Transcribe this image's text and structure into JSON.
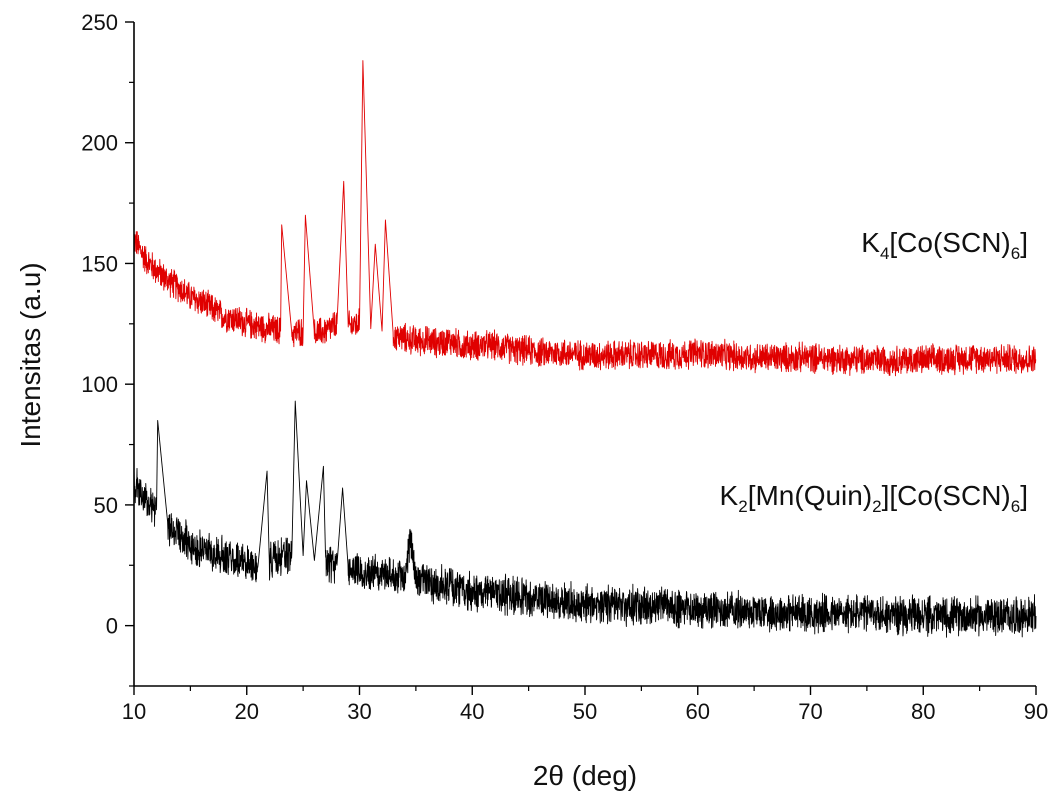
{
  "chart_data": {
    "type": "line",
    "title": "",
    "xlabel": "2θ (deg)",
    "ylabel": "Intensitas (a.u)",
    "xlim": [
      10,
      90
    ],
    "ylim": [
      -25,
      250
    ],
    "x_ticks": [
      10,
      20,
      30,
      40,
      50,
      60,
      70,
      80,
      90
    ],
    "y_ticks": [
      0,
      50,
      100,
      150,
      200,
      250
    ],
    "grid": false,
    "legend": "none",
    "series": [
      {
        "name": "K4[Co(SCN)6]",
        "color": "#e00000",
        "x": [
          10,
          11,
          12,
          13,
          14,
          15,
          16,
          17,
          18,
          19,
          20,
          21,
          22,
          23,
          23.1,
          24,
          25,
          25.2,
          26,
          27,
          28,
          28.6,
          29,
          30,
          30.3,
          31,
          31.4,
          32,
          32.3,
          33,
          34,
          35,
          36,
          37,
          38,
          39,
          40,
          41,
          42,
          43,
          44,
          45,
          46,
          47,
          48,
          50,
          52,
          54,
          56,
          58,
          60,
          62,
          65,
          70,
          75,
          80,
          85,
          90
        ],
        "y": [
          160,
          152,
          147,
          143,
          140,
          136,
          134,
          131,
          128,
          127,
          125,
          124,
          123,
          122,
          166,
          121,
          122,
          170,
          121,
          122,
          125,
          184,
          124,
          125,
          234,
          123,
          158,
          122,
          168,
          120,
          119,
          118,
          118,
          117,
          118,
          116,
          116,
          116,
          116,
          115,
          114,
          114,
          113,
          113,
          113,
          112,
          112,
          112,
          112,
          112,
          113,
          112,
          111,
          111,
          110,
          110,
          111,
          110
        ]
      },
      {
        "name": "K2[Mn(Quin)2][Co(SCN)6]",
        "color": "#000000",
        "x": [
          10,
          11,
          12,
          12.1,
          13,
          14,
          15,
          16,
          17,
          18,
          19,
          20,
          21,
          21.8,
          22,
          23,
          24,
          24.3,
          25,
          25.3,
          26,
          26.8,
          27,
          28,
          28.5,
          29,
          30,
          31,
          32,
          33,
          34,
          34.5,
          35,
          36,
          37,
          38,
          40,
          42,
          44,
          46,
          48,
          50,
          52,
          55,
          60,
          65,
          70,
          75,
          80,
          85,
          90
        ],
        "y": [
          58,
          53,
          48,
          85,
          42,
          37,
          34,
          32,
          30,
          29,
          27,
          26,
          25,
          64,
          26,
          28,
          30,
          93,
          29,
          60,
          27,
          66,
          26,
          25,
          57,
          24,
          23,
          22,
          22,
          21,
          20,
          37,
          19,
          18,
          17,
          16,
          14,
          13,
          12,
          11,
          10,
          9,
          9,
          8,
          7,
          6,
          5,
          5,
          4,
          4,
          4
        ]
      }
    ],
    "annotations": [
      {
        "series": 0,
        "base": "K",
        "sub1": "4",
        "mid": "[Co(SCN)",
        "sub2": "6",
        "end": "]"
      },
      {
        "series": 1,
        "base": "K",
        "sub1": "2",
        "mid": "[Mn(Quin)",
        "sub2": "2",
        "mid2": "][Co(SCN)",
        "sub3": "6",
        "end": "]"
      }
    ]
  }
}
